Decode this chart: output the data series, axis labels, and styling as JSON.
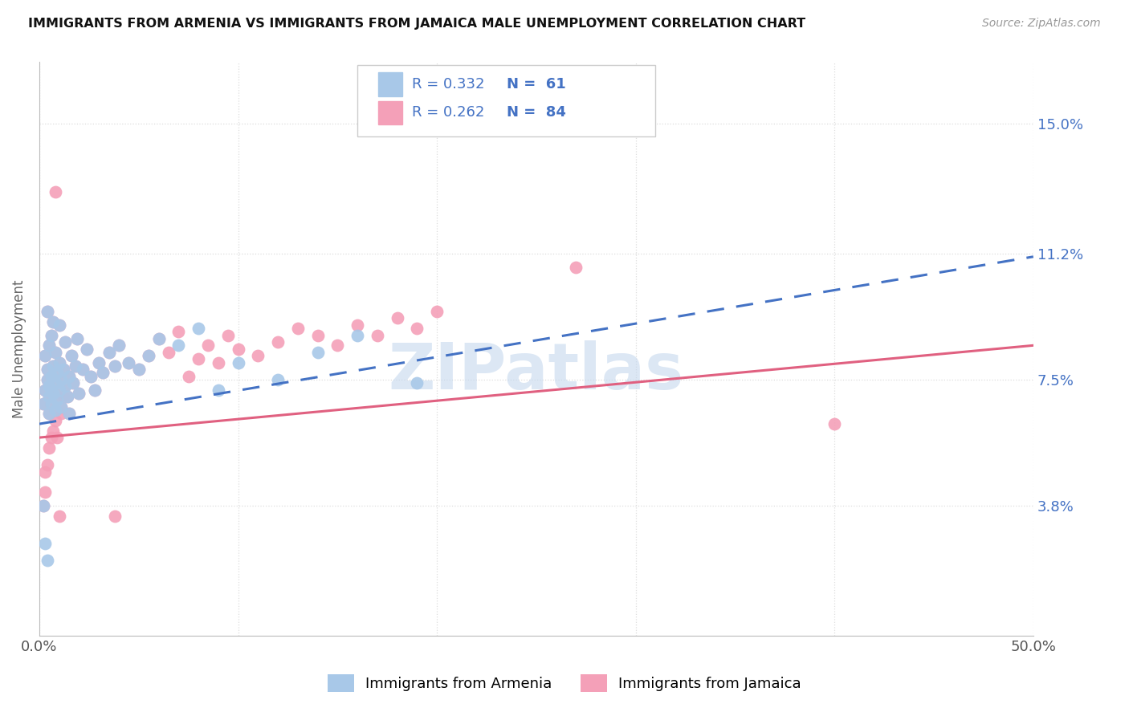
{
  "title": "IMMIGRANTS FROM ARMENIA VS IMMIGRANTS FROM JAMAICA MALE UNEMPLOYMENT CORRELATION CHART",
  "source": "Source: ZipAtlas.com",
  "ylabel": "Male Unemployment",
  "xlim": [
    0.0,
    0.5
  ],
  "ylim": [
    0.0,
    0.168
  ],
  "yticks": [
    0.038,
    0.075,
    0.112,
    0.15
  ],
  "ytick_labels": [
    "3.8%",
    "7.5%",
    "11.2%",
    "15.0%"
  ],
  "xticks": [
    0.0,
    0.1,
    0.2,
    0.3,
    0.4,
    0.5
  ],
  "xtick_labels": [
    "0.0%",
    "",
    "",
    "",
    "",
    "50.0%"
  ],
  "color_armenia": "#a8c8e8",
  "color_jamaica": "#f4a0b8",
  "color_blue": "#4472c4",
  "color_pink": "#e06080",
  "background_color": "#ffffff",
  "grid_color": "#dddddd",
  "watermark": "ZIPatlas",
  "arm_intercept": 0.062,
  "arm_slope": 0.098,
  "jam_intercept": 0.058,
  "jam_slope": 0.054,
  "armenia_x": [
    0.002,
    0.003,
    0.003,
    0.004,
    0.004,
    0.004,
    0.005,
    0.005,
    0.005,
    0.005,
    0.006,
    0.006,
    0.006,
    0.007,
    0.007,
    0.007,
    0.008,
    0.008,
    0.008,
    0.009,
    0.009,
    0.01,
    0.01,
    0.01,
    0.011,
    0.011,
    0.012,
    0.013,
    0.013,
    0.014,
    0.015,
    0.015,
    0.016,
    0.017,
    0.018,
    0.019,
    0.02,
    0.022,
    0.024,
    0.026,
    0.028,
    0.03,
    0.032,
    0.035,
    0.038,
    0.04,
    0.045,
    0.05,
    0.055,
    0.06,
    0.07,
    0.08,
    0.09,
    0.1,
    0.12,
    0.14,
    0.16,
    0.19,
    0.002,
    0.003,
    0.004
  ],
  "armenia_y": [
    0.068,
    0.072,
    0.082,
    0.075,
    0.078,
    0.095,
    0.065,
    0.07,
    0.073,
    0.085,
    0.068,
    0.076,
    0.088,
    0.071,
    0.079,
    0.092,
    0.066,
    0.074,
    0.083,
    0.069,
    0.077,
    0.072,
    0.08,
    0.091,
    0.067,
    0.075,
    0.078,
    0.073,
    0.086,
    0.07,
    0.065,
    0.076,
    0.082,
    0.074,
    0.079,
    0.087,
    0.071,
    0.078,
    0.084,
    0.076,
    0.072,
    0.08,
    0.077,
    0.083,
    0.079,
    0.085,
    0.08,
    0.078,
    0.082,
    0.087,
    0.085,
    0.09,
    0.072,
    0.08,
    0.075,
    0.083,
    0.088,
    0.074,
    0.038,
    0.027,
    0.022
  ],
  "jamaica_x": [
    0.002,
    0.003,
    0.003,
    0.004,
    0.004,
    0.004,
    0.005,
    0.005,
    0.005,
    0.005,
    0.006,
    0.006,
    0.006,
    0.007,
    0.007,
    0.007,
    0.008,
    0.008,
    0.008,
    0.009,
    0.009,
    0.01,
    0.01,
    0.01,
    0.011,
    0.011,
    0.012,
    0.013,
    0.013,
    0.014,
    0.015,
    0.015,
    0.016,
    0.017,
    0.018,
    0.019,
    0.02,
    0.022,
    0.024,
    0.026,
    0.028,
    0.03,
    0.032,
    0.035,
    0.038,
    0.04,
    0.045,
    0.05,
    0.055,
    0.06,
    0.065,
    0.07,
    0.075,
    0.08,
    0.085,
    0.09,
    0.095,
    0.1,
    0.11,
    0.12,
    0.13,
    0.14,
    0.15,
    0.16,
    0.17,
    0.18,
    0.19,
    0.2,
    0.002,
    0.003,
    0.003,
    0.004,
    0.005,
    0.006,
    0.007,
    0.008,
    0.008,
    0.009,
    0.01,
    0.011,
    0.012,
    0.038,
    0.27,
    0.4
  ],
  "jamaica_y": [
    0.068,
    0.072,
    0.082,
    0.075,
    0.078,
    0.095,
    0.065,
    0.07,
    0.073,
    0.085,
    0.068,
    0.076,
    0.088,
    0.071,
    0.079,
    0.092,
    0.066,
    0.074,
    0.083,
    0.069,
    0.077,
    0.072,
    0.08,
    0.091,
    0.067,
    0.075,
    0.078,
    0.073,
    0.086,
    0.07,
    0.065,
    0.076,
    0.082,
    0.074,
    0.079,
    0.087,
    0.071,
    0.078,
    0.084,
    0.076,
    0.072,
    0.08,
    0.077,
    0.083,
    0.079,
    0.085,
    0.08,
    0.078,
    0.082,
    0.087,
    0.083,
    0.089,
    0.076,
    0.081,
    0.085,
    0.08,
    0.088,
    0.084,
    0.082,
    0.086,
    0.09,
    0.088,
    0.085,
    0.091,
    0.088,
    0.093,
    0.09,
    0.095,
    0.038,
    0.042,
    0.048,
    0.05,
    0.055,
    0.058,
    0.06,
    0.063,
    0.13,
    0.058,
    0.035,
    0.065,
    0.07,
    0.035,
    0.108,
    0.062
  ]
}
